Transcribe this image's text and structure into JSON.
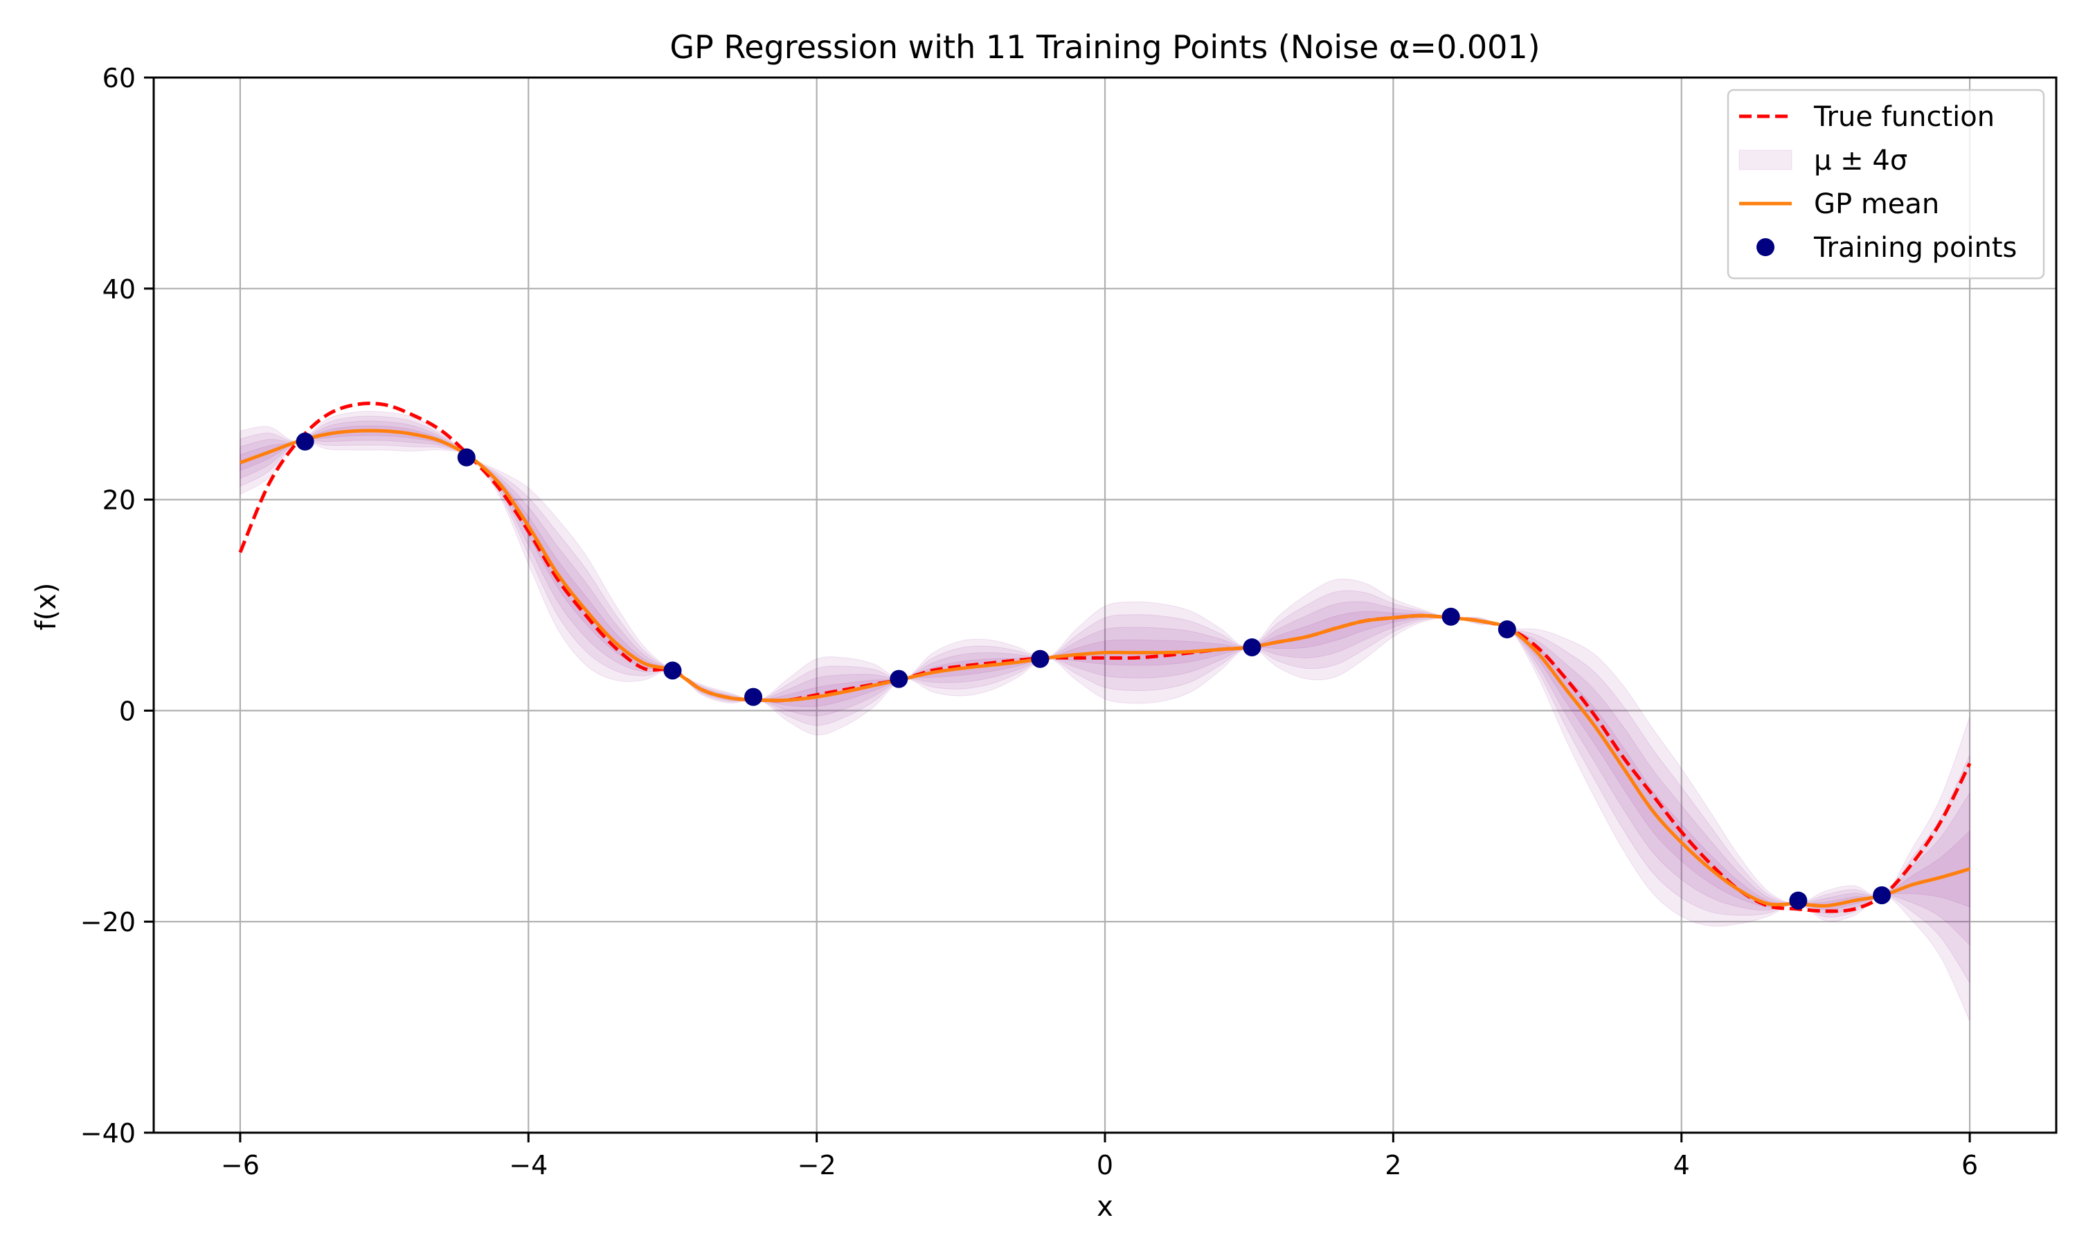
{
  "chart_data": {
    "type": "line",
    "title": "GP Regression with 11 Training Points (Noise α=0.001)",
    "xlabel": "x",
    "ylabel": "f(x)",
    "xlim": [
      -6.6,
      6.6
    ],
    "ylim": [
      -40,
      60
    ],
    "xticks": [
      -6,
      -4,
      -2,
      0,
      2,
      4,
      6
    ],
    "xtick_labels": [
      "−6",
      "−4",
      "−2",
      "0",
      "2",
      "4",
      "6"
    ],
    "yticks": [
      -40,
      -20,
      0,
      20,
      40,
      60
    ],
    "ytick_labels": [
      "−40",
      "−20",
      "0",
      "20",
      "40",
      "60"
    ],
    "grid": true,
    "legend_position": "top-right",
    "legend": [
      {
        "key": "true",
        "label": "True function",
        "kind": "dashed-line",
        "color": "#ff0000"
      },
      {
        "key": "band",
        "label": "μ ± 4σ",
        "kind": "patch",
        "color": "#800080"
      },
      {
        "key": "mean",
        "label": "GP mean",
        "kind": "line",
        "color": "#ff7f0e"
      },
      {
        "key": "points",
        "label": "Training points",
        "kind": "marker",
        "color": "#000080"
      }
    ],
    "series": [
      {
        "name": "True function",
        "color": "#ff0000",
        "style": "dashed",
        "x": [
          -6,
          -5.8,
          -5.6,
          -5.4,
          -5.2,
          -5.0,
          -4.8,
          -4.6,
          -4.4,
          -4.2,
          -4.0,
          -3.8,
          -3.6,
          -3.4,
          -3.2,
          -3.0,
          -2.8,
          -2.6,
          -2.4,
          -2.2,
          -2.0,
          -1.8,
          -1.6,
          -1.4,
          -1.2,
          -1.0,
          -0.8,
          -0.6,
          -0.4,
          -0.2,
          0.0,
          0.2,
          0.4,
          0.6,
          0.8,
          1.0,
          1.2,
          1.4,
          1.6,
          1.8,
          2.0,
          2.2,
          2.4,
          2.6,
          2.8,
          3.0,
          3.2,
          3.4,
          3.6,
          3.8,
          4.0,
          4.2,
          4.4,
          4.6,
          4.8,
          5.0,
          5.2,
          5.4,
          5.6,
          5.8,
          6.0
        ],
        "y": [
          15.0,
          21.5,
          25.5,
          28.0,
          29.0,
          29.0,
          28.0,
          26.5,
          24.0,
          21.0,
          17.0,
          12.5,
          9.0,
          6.0,
          4.0,
          3.8,
          2.0,
          1.2,
          1.0,
          1.0,
          1.5,
          2.0,
          2.5,
          3.0,
          3.8,
          4.2,
          4.5,
          4.8,
          5.0,
          5.0,
          5.0,
          5.0,
          5.2,
          5.5,
          5.8,
          6.0,
          6.5,
          7.0,
          7.8,
          8.5,
          8.8,
          9.0,
          8.8,
          8.5,
          7.8,
          6.0,
          3.0,
          -0.5,
          -4.5,
          -8.0,
          -11.5,
          -14.5,
          -17.0,
          -18.5,
          -18.8,
          -19.0,
          -18.8,
          -17.5,
          -14.5,
          -10.5,
          -5.0
        ]
      },
      {
        "name": "GP mean",
        "color": "#ff7f0e",
        "style": "solid",
        "x": [
          -6,
          -5.8,
          -5.6,
          -5.4,
          -5.2,
          -5.0,
          -4.8,
          -4.6,
          -4.4,
          -4.2,
          -4.0,
          -3.8,
          -3.6,
          -3.4,
          -3.2,
          -3.0,
          -2.8,
          -2.6,
          -2.4,
          -2.2,
          -2.0,
          -1.8,
          -1.6,
          -1.4,
          -1.2,
          -1.0,
          -0.8,
          -0.6,
          -0.4,
          -0.2,
          0.0,
          0.2,
          0.4,
          0.6,
          0.8,
          1.0,
          1.2,
          1.4,
          1.6,
          1.8,
          2.0,
          2.2,
          2.4,
          2.6,
          2.8,
          3.0,
          3.2,
          3.4,
          3.6,
          3.8,
          4.0,
          4.2,
          4.4,
          4.6,
          4.8,
          5.0,
          5.2,
          5.4,
          5.6,
          5.8,
          6.0
        ],
        "y": [
          23.5,
          24.5,
          25.5,
          26.2,
          26.5,
          26.5,
          26.2,
          25.5,
          24.0,
          21.5,
          17.5,
          13.0,
          9.5,
          6.5,
          4.5,
          3.8,
          2.0,
          1.2,
          1.0,
          1.0,
          1.3,
          1.8,
          2.4,
          3.0,
          3.6,
          4.0,
          4.3,
          4.6,
          5.0,
          5.3,
          5.5,
          5.5,
          5.5,
          5.6,
          5.8,
          6.0,
          6.5,
          7.0,
          7.8,
          8.5,
          8.8,
          9.0,
          8.8,
          8.5,
          7.8,
          5.5,
          2.0,
          -1.5,
          -5.5,
          -9.5,
          -12.5,
          -15.0,
          -17.0,
          -18.3,
          -18.3,
          -18.5,
          -18.0,
          -17.5,
          -16.5,
          -15.8,
          -15.0
        ]
      }
    ],
    "uncertainty_bands": {
      "label": "μ ± 4σ",
      "color": "#800080",
      "multipliers": [
        1,
        2,
        3,
        4
      ],
      "sigma": [
        0.75,
        0.6,
        0.0,
        0.35,
        0.45,
        0.45,
        0.4,
        0.2,
        0.0,
        0.3,
        0.9,
        1.3,
        1.3,
        0.9,
        0.4,
        0.0,
        0.12,
        0.12,
        0.0,
        0.5,
        0.9,
        0.8,
        0.5,
        0.0,
        0.45,
        0.65,
        0.6,
        0.35,
        0.0,
        0.6,
        1.1,
        1.2,
        1.15,
        0.95,
        0.5,
        0.0,
        0.6,
        1.0,
        1.15,
        0.9,
        0.45,
        0.15,
        0.0,
        0.08,
        0.0,
        0.55,
        1.2,
        1.7,
        1.95,
        1.95,
        1.75,
        1.35,
        0.8,
        0.3,
        0.0,
        0.35,
        0.35,
        0.0,
        0.85,
        1.9,
        3.6
      ]
    },
    "training_points": {
      "name": "Training points",
      "color": "#000080",
      "x": [
        -5.55,
        -4.43,
        -3.0,
        -2.44,
        -1.43,
        -0.45,
        1.02,
        2.4,
        2.79,
        4.81,
        5.39
      ],
      "y": [
        25.5,
        24.0,
        3.8,
        1.3,
        3.0,
        4.9,
        6.0,
        8.9,
        7.7,
        -18.0,
        -17.5
      ]
    }
  }
}
